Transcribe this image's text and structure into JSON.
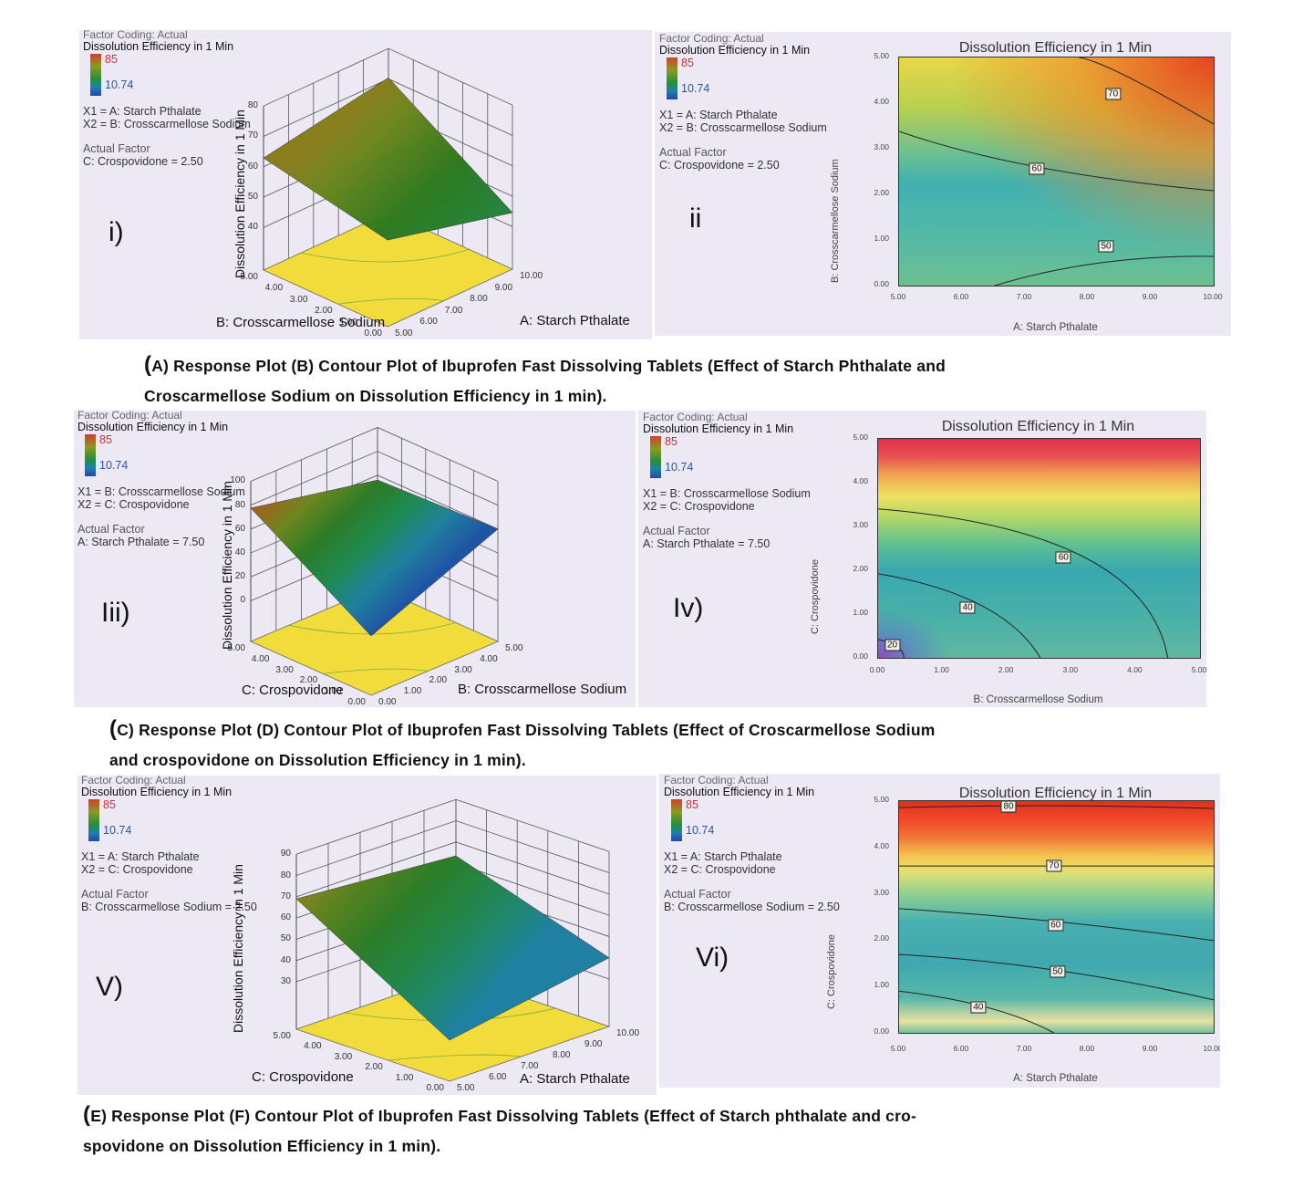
{
  "captions": [
    {
      "lines": [
        "A) Response Plot (B) Contour Plot of Ibuprofen Fast Dissolving Tablets (Effect of Starch Phthalate and",
        "Croscarmellose Sodium on Dissolution Efficiency in 1 min)."
      ],
      "open": "("
    },
    {
      "lines": [
        "C) Response Plot (D) Contour Plot of Ibuprofen Fast Dissolving Tablets (Effect of Croscarmellose Sodium",
        "and crospovidone on Dissolution Efficiency in 1 min)."
      ],
      "open": "("
    },
    {
      "lines": [
        "E) Response Plot (F) Contour Plot of Ibuprofen Fast Dissolving Tablets (Effect of Starch phthalate and cro-",
        "spovidone on Dissolution Efficiency in 1 min)."
      ],
      "open": "("
    }
  ],
  "panels": [
    {
      "panel_label": "i)",
      "factor_coding": "Factor Coding: Actual",
      "response": "Dissolution Efficiency in 1 Min",
      "legend_high": "85",
      "legend_low": "10.74",
      "x1": "X1 = A: Starch Pthalate",
      "x2": "X2 = B: Crosscarmellose Sodium",
      "actual_factor_title": "Actual Factor",
      "actual_factor": "C: Crospovidone = 2.50"
    },
    {
      "panel_label": "ii",
      "factor_coding": "Factor Coding: Actual",
      "response": "Dissolution Efficiency in 1 Min",
      "legend_high": "85",
      "legend_low": "10.74",
      "x1": "X1 = A: Starch Pthalate",
      "x2": "X2 = B: Crosscarmellose Sodium",
      "actual_factor_title": "Actual Factor",
      "actual_factor": "C: Crospovidone = 2.50"
    },
    {
      "panel_label": "Iii)",
      "factor_coding": "Factor Coding: Actual",
      "response": "Dissolution Efficiency in 1 Min",
      "legend_high": "85",
      "legend_low": "10.74",
      "x1": "X1 = B: Crosscarmellose Sodium",
      "x2": "X2 = C: Crospovidone",
      "actual_factor_title": "Actual Factor",
      "actual_factor": "A: Starch Pthalate = 7.50"
    },
    {
      "panel_label": "Iv)",
      "factor_coding": "Factor Coding: Actual",
      "response": "Dissolution Efficiency in 1 Min",
      "legend_high": "85",
      "legend_low": "10.74",
      "x1": "X1 = B: Crosscarmellose Sodium",
      "x2": "X2 = C: Crospovidone",
      "actual_factor_title": "Actual Factor",
      "actual_factor": "A: Starch Pthalate = 7.50"
    },
    {
      "panel_label": "V)",
      "factor_coding": "Factor Coding: Actual",
      "response": "Dissolution Efficiency in 1 Min",
      "legend_high": "85",
      "legend_low": "10.74",
      "x1": "X1 = A: Starch Pthalate",
      "x2": "X2 = C: Crospovidone",
      "actual_factor_title": "Actual Factor",
      "actual_factor": "B: Crosscarmellose Sodium = 2.50"
    },
    {
      "panel_label": "Vi)",
      "factor_coding": "Factor Coding: Actual",
      "response": "Dissolution Efficiency in 1 Min",
      "legend_high": "85",
      "legend_low": "10.74",
      "x1": "X1 = A: Starch Pthalate",
      "x2": "X2 = C: Crospovidone",
      "actual_factor_title": "Actual Factor",
      "actual_factor": "B: Crosscarmellose Sodium = 2.50"
    }
  ],
  "colors": {
    "panel_background": "#ece9f4",
    "floor": "#f2dc3c",
    "legend_high": "#c8323a",
    "legend_low": "#2a55a8"
  },
  "chart_data": [
    {
      "type": "surface",
      "zlabel": "Dissolution Efficiency in 1 Min",
      "left_axis_label": "B: Crosscarmellose Sodium",
      "right_axis_label": "A: Starch Pthalate",
      "left_ticks": [
        "0.00",
        "1.00",
        "2.00",
        "3.00",
        "4.00",
        "5.00"
      ],
      "left_range": [
        0,
        5
      ],
      "right_ticks": [
        "5.00",
        "6.00",
        "7.00",
        "8.00",
        "9.00",
        "10.00"
      ],
      "right_range": [
        5,
        10
      ],
      "zticks": [
        "40",
        "50",
        "60",
        "70",
        "80"
      ],
      "corners": {
        "front": 54.5,
        "right": 44.6,
        "left": 62.9,
        "back": 70.4
      }
    },
    {
      "type": "contour",
      "title": "Dissolution Efficiency in 1 Min",
      "xlabel": "A: Starch Pthalate",
      "ylabel": "B: Crosscarmellose Sodium",
      "xlim": [
        5,
        10
      ],
      "ylim": [
        0,
        5
      ],
      "xticks": [
        "5.00",
        "6.00",
        "7.00",
        "8.00",
        "9.00",
        "10.00"
      ],
      "yticks": [
        "0.00",
        "1.00",
        "2.00",
        "3.00",
        "4.00",
        "5.00"
      ],
      "contours": [
        {
          "level": "70",
          "points": [
            [
              7.86,
              5.0
            ],
            [
              8.6,
              4.6
            ],
            [
              10,
              3.54
            ]
          ],
          "label_at": [
            8.4,
            4.2
          ]
        },
        {
          "level": "60",
          "points": [
            [
              5,
              3.38
            ],
            [
              7.2,
              2.6
            ],
            [
              10,
              2.08
            ]
          ],
          "label_at": [
            7.19,
            2.56
          ]
        },
        {
          "level": "50",
          "points": [
            [
              6.52,
              0
            ],
            [
              8.2,
              0.5
            ],
            [
              10,
              0.64
            ]
          ],
          "label_at": [
            8.29,
            0.87
          ]
        }
      ]
    },
    {
      "type": "surface",
      "zlabel": "Dissolution Efficiency in 1 Min",
      "left_axis_label": "C: Crospovidone",
      "right_axis_label": "B: Crosscarmellose Sodium",
      "left_ticks": [
        "0.00",
        "1.00",
        "2.00",
        "3.00",
        "4.00",
        "5.00"
      ],
      "left_range": [
        0,
        5
      ],
      "right_ticks": [
        "0.00",
        "1.00",
        "2.00",
        "3.00",
        "4.00",
        "5.00"
      ],
      "right_range": [
        0,
        5
      ],
      "zticks": [
        "0",
        "20",
        "40",
        "60",
        "80",
        "100"
      ],
      "corners": {
        "front": 15.6,
        "right": 60,
        "left": 77.5,
        "back": 56
      }
    },
    {
      "type": "contour",
      "title": "Dissolution Efficiency in 1 Min",
      "xlabel": "B: Crosscarmellose Sodium",
      "ylabel": "C: Crospovidone",
      "xlim": [
        0,
        5
      ],
      "ylim": [
        0,
        5
      ],
      "xticks": [
        "0.00",
        "1.00",
        "2.00",
        "3.00",
        "4.00",
        "5.00"
      ],
      "yticks": [
        "0.00",
        "1.00",
        "2.00",
        "3.00",
        "4.00",
        "5.00"
      ],
      "contours": [
        {
          "level": "60",
          "points": [
            [
              0,
              3.4
            ],
            [
              3.2,
              2.3
            ],
            [
              4.5,
              0
            ]
          ],
          "label_at": [
            2.88,
            2.29
          ]
        },
        {
          "level": "40",
          "points": [
            [
              0,
              1.92
            ],
            [
              1.6,
              1.2
            ],
            [
              2.52,
              0
            ]
          ],
          "label_at": [
            1.39,
            1.15
          ]
        },
        {
          "level": "20",
          "points": [
            [
              0,
              0.42
            ],
            [
              0.3,
              0.25
            ],
            [
              0.4,
              0
            ]
          ],
          "label_at": [
            0.22,
            0.3
          ]
        }
      ]
    },
    {
      "type": "surface",
      "zlabel": "Dissolution Efficiency in 1 Min",
      "left_axis_label": "C: Crospovidone",
      "right_axis_label": "A: Starch Pthalate",
      "left_ticks": [
        "0.00",
        "1.00",
        "2.00",
        "3.00",
        "4.00",
        "5.00"
      ],
      "left_range": [
        0,
        5
      ],
      "right_ticks": [
        "5.00",
        "6.00",
        "7.00",
        "8.00",
        "9.00",
        "10.00"
      ],
      "right_range": [
        5,
        10
      ],
      "zticks": [
        "30",
        "40",
        "50",
        "60",
        "70",
        "80",
        "90"
      ],
      "corners": {
        "front": 27,
        "right": 40,
        "left": 69,
        "back": 63.5
      }
    },
    {
      "type": "contour",
      "title": "Dissolution Efficiency in 1 Min",
      "xlabel": "A: Starch Pthalate",
      "ylabel": "C: Crospovidone",
      "xlim": [
        5,
        10
      ],
      "ylim": [
        0,
        5
      ],
      "xticks": [
        "5.00",
        "6.00",
        "7.00",
        "8.00",
        "9.00",
        "10.00"
      ],
      "yticks": [
        "0.00",
        "1.00",
        "2.00",
        "3.00",
        "4.00",
        "5.00"
      ],
      "contours": [
        {
          "level": "80",
          "points": [
            [
              5,
              4.86
            ],
            [
              7.5,
              4.9
            ],
            [
              10,
              4.84
            ]
          ],
          "label_at": [
            6.74,
            4.88
          ]
        },
        {
          "level": "70",
          "points": [
            [
              5,
              3.6
            ],
            [
              7.5,
              3.6
            ],
            [
              10,
              3.6
            ]
          ],
          "label_at": [
            7.46,
            3.6
          ]
        },
        {
          "level": "60",
          "points": [
            [
              5,
              2.68
            ],
            [
              7.5,
              2.4
            ],
            [
              10,
              1.99
            ]
          ],
          "label_at": [
            7.49,
            2.33
          ]
        },
        {
          "level": "50",
          "points": [
            [
              5,
              1.69
            ],
            [
              7.5,
              1.35
            ],
            [
              10,
              0.71
            ]
          ],
          "label_at": [
            7.52,
            1.32
          ]
        },
        {
          "level": "40",
          "points": [
            [
              5,
              0.9
            ],
            [
              6.4,
              0.55
            ],
            [
              7.46,
              0
            ]
          ],
          "label_at": [
            6.26,
            0.55
          ]
        }
      ]
    }
  ]
}
